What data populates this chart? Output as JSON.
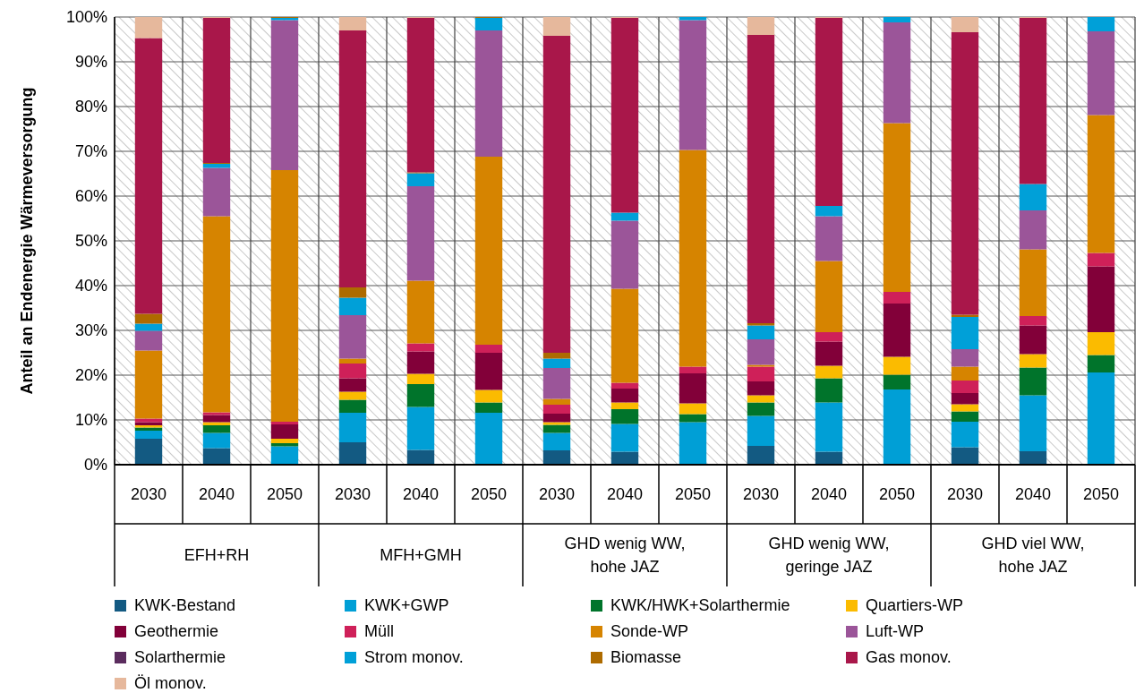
{
  "chart_data": {
    "type": "bar",
    "stacked": true,
    "ylabel": "Anteil an Endenergie Wärmeversorgung",
    "categories": [
      "2030",
      "2040",
      "2050",
      "2030",
      "2040",
      "2050",
      "2030",
      "2040",
      "2050",
      "2030",
      "2040",
      "2050",
      "2030",
      "2040",
      "2050"
    ],
    "annotations": [
      "EFH+RH",
      "MFH+GMH",
      "GHD wenig WW,\nhohe JAZ",
      "GHD wenig WW,\ngeringe JAZ",
      "GHD viel WW,\nhohe JAZ"
    ],
    "ylim": [
      0,
      100
    ],
    "yticks": [
      {
        "value": 0,
        "label": "0%"
      },
      {
        "value": 10,
        "label": "10%"
      },
      {
        "value": 20,
        "label": "20%"
      },
      {
        "value": 30,
        "label": "30%"
      },
      {
        "value": 40,
        "label": "40%"
      },
      {
        "value": 50,
        "label": "50%"
      },
      {
        "value": 60,
        "label": "60%"
      },
      {
        "value": 70,
        "label": "70%"
      },
      {
        "value": 80,
        "label": "80%"
      },
      {
        "value": 90,
        "label": "90%"
      },
      {
        "value": 100,
        "label": "100%"
      }
    ],
    "grid": true,
    "legend": "bottom",
    "series": [
      {
        "name": "KWK-Bestand",
        "color": "#135a82",
        "values": [
          5.8,
          3.7,
          0,
          5.0,
          3.3,
          0,
          3.2,
          2.9,
          0,
          4.2,
          2.9,
          0,
          3.9,
          3.0,
          0
        ]
      },
      {
        "name": "KWK+GWP",
        "color": "#009fd6",
        "values": [
          1.8,
          3.4,
          4.1,
          6.6,
          9.6,
          11.6,
          3.9,
          6.2,
          9.5,
          6.7,
          11.0,
          16.8,
          5.7,
          12.5,
          20.6
        ]
      },
      {
        "name": "KWK/HWK+Solarthermie",
        "color": "#00742b",
        "values": [
          0.7,
          1.7,
          0.7,
          2.9,
          5.1,
          2.3,
          1.8,
          3.3,
          1.8,
          3.0,
          5.4,
          3.3,
          2.3,
          6.2,
          3.9
        ]
      },
      {
        "name": "Quartiers-WP",
        "color": "#fbbb00",
        "values": [
          0.5,
          0.7,
          1.0,
          1.8,
          2.3,
          2.8,
          0.6,
          1.5,
          2.4,
          1.6,
          2.8,
          4.0,
          1.6,
          3.0,
          5.1
        ]
      },
      {
        "name": "Geothermie",
        "color": "#820039",
        "values": [
          0.7,
          1.6,
          3.2,
          3.0,
          5.0,
          8.3,
          1.9,
          3.1,
          6.7,
          3.1,
          5.4,
          11.9,
          2.5,
          6.4,
          14.7
        ]
      },
      {
        "name": "Müll",
        "color": "#cf2059",
        "values": [
          0.8,
          0.6,
          0.6,
          3.3,
          1.8,
          1.8,
          2.0,
          1.3,
          1.5,
          3.3,
          2.1,
          2.6,
          2.8,
          2.1,
          3.0
        ]
      },
      {
        "name": "Sonde-WP",
        "color": "#d68400",
        "values": [
          15.2,
          43.8,
          56.2,
          1.1,
          14.0,
          42.0,
          1.3,
          21.0,
          48.4,
          0.4,
          15.9,
          37.7,
          3.1,
          14.9,
          30.8
        ]
      },
      {
        "name": "Luft-WP",
        "color": "#9b5599",
        "values": [
          4.4,
          10.8,
          33.5,
          9.7,
          21.1,
          28.2,
          6.9,
          15.2,
          29.0,
          5.7,
          10.0,
          22.5,
          3.9,
          8.7,
          18.7
        ]
      },
      {
        "name": "Solarthermie",
        "color": "#5b2c5e",
        "values": [
          0,
          0,
          0,
          0,
          0,
          0,
          0,
          0,
          0,
          0,
          0,
          0,
          0,
          0,
          0
        ]
      },
      {
        "name": "Strom monov.",
        "color": "#00a0d8",
        "values": [
          1.6,
          0.9,
          0.5,
          3.9,
          2.9,
          2.8,
          2.1,
          1.8,
          0.7,
          3.1,
          2.3,
          1.2,
          7.2,
          5.9,
          3.2
        ]
      },
      {
        "name": "Biomasse",
        "color": "#ae6b00",
        "values": [
          2.2,
          0.2,
          0.2,
          2.3,
          0.2,
          0.2,
          1.3,
          0,
          0,
          0.5,
          0,
          0,
          0.5,
          0,
          0
        ]
      },
      {
        "name": "Gas monov.",
        "color": "#a9174a",
        "values": [
          61.6,
          32.4,
          0,
          57.4,
          34.5,
          0,
          70.8,
          43.5,
          0,
          64.4,
          42.0,
          0,
          63.1,
          37.1,
          0
        ]
      },
      {
        "name": "Öl monov.",
        "color": "#e6b89c",
        "values": [
          4.7,
          0.2,
          0,
          3.0,
          0.2,
          0,
          4.2,
          0.2,
          0,
          4.0,
          0.2,
          0,
          3.4,
          0.2,
          0
        ]
      }
    ]
  }
}
